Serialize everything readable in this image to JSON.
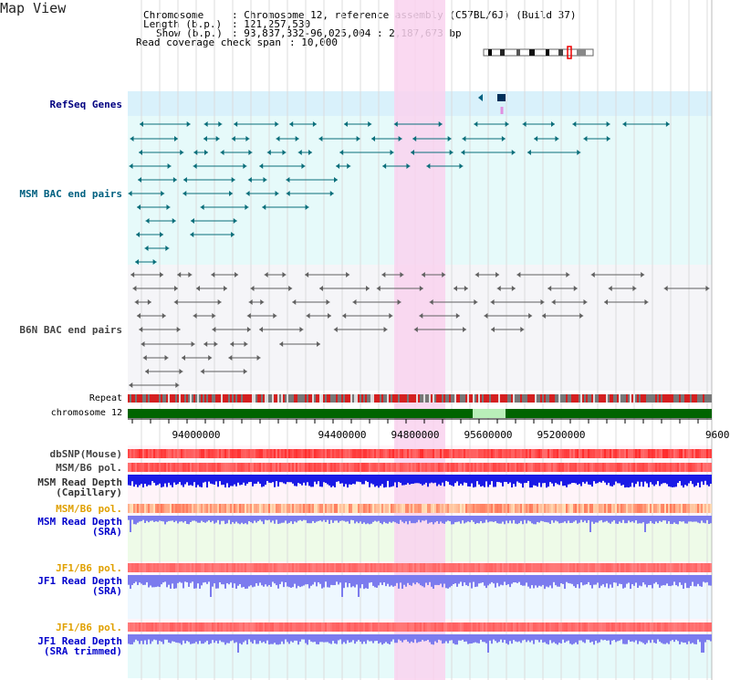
{
  "app_title": "Map View",
  "header": {
    "chromosome_label": "Chromosome",
    "chromosome_value": ": Chromosome 12, reference assembly (C57BL/6J) (Build 37)",
    "length_label": "Length (b.p.)",
    "length_value": ": 121,257,530",
    "show_label": "Show (b.p.)",
    "show_value": ": 93,837,332-96,025,004 : 2,187,673 bp",
    "span_label": "Read coverage check span",
    "span_value": ": 10,000"
  },
  "tracks": {
    "refseq": "RefSeq Genes",
    "msm_bac": "MSM BAC end pairs",
    "b6n_bac": "B6N BAC end pairs",
    "repeat": "Repeat",
    "chromosome": "chromosome 12",
    "dbsnp": "dbSNP(Mouse)",
    "msm_pol1": "MSM/B6 pol.",
    "msm_depth_cap_1": "MSM Read Depth",
    "msm_depth_cap_2": "(Capillary)",
    "msm_pol2": "MSM/B6 pol.",
    "msm_depth_sra_1": "MSM Read Depth",
    "msm_depth_sra_2": "(SRA)",
    "jf1_pol1": "JF1/B6 pol.",
    "jf1_depth_1": "JF1 Read Depth",
    "jf1_depth_2": "(SRA)",
    "jf1_pol2": "JF1/B6 pol.",
    "jf1_depth_trim_1": "JF1 Read Depth",
    "jf1_depth_trim_2": "(SRA trimmed)"
  },
  "axis_ticks": [
    "94000000",
    "94400000",
    "94800000",
    "95200000",
    "95600000",
    "9600"
  ],
  "colors": {
    "label_navy": "#000080",
    "label_blue": "#0000cc",
    "label_orange": "#e0a000",
    "refseq_bg": "#d9f1fb",
    "msm_bg": "#e6fafa",
    "b6n_bg": "#f5f5f8",
    "highlight": "#f9d2ee",
    "chrom_green": "#006400",
    "chrom_gap": "#b9efb9",
    "depth_blue": "#1a1ae6",
    "depth_light": "#7b7bee"
  }
}
